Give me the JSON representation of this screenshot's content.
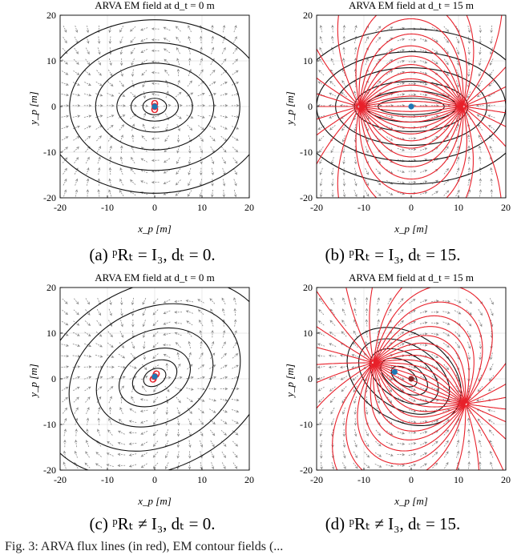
{
  "chart_data": [
    {
      "type": "scatter",
      "title": "ARVA EM field at d_t = 0 m",
      "xlabel": "x_p [m]",
      "ylabel": "y_p [m]",
      "xlim": [
        -20,
        20
      ],
      "ylim": [
        -20,
        20
      ],
      "xticks": [
        "-20",
        "-10",
        "0",
        "10",
        "20"
      ],
      "yticks": [
        "20",
        "10",
        "0",
        "-10",
        "-20"
      ],
      "grid": true,
      "points": [
        {
          "x": 0,
          "y": 0,
          "color": "#1f77b4"
        }
      ],
      "caption": "(a) ᵖRₜ = I₃, dₜ = 0."
    },
    {
      "type": "scatter",
      "title": "ARVA EM field at d_t = 15 m",
      "xlabel": "x_p [m]",
      "ylabel": "y_p [m]",
      "xlim": [
        -20,
        20
      ],
      "ylim": [
        -20,
        20
      ],
      "xticks": [
        "-20",
        "-10",
        "0",
        "10",
        "20"
      ],
      "yticks": [
        "20",
        "10",
        "0",
        "-10",
        "-20"
      ],
      "grid": true,
      "points": [
        {
          "x": 0,
          "y": 0,
          "color": "#1f77b4"
        }
      ],
      "caption": "(b) ᵖRₜ = I₃, dₜ = 15."
    },
    {
      "type": "scatter",
      "title": "ARVA EM field at d_t = 0 m",
      "xlabel": "x_p [m]",
      "ylabel": "y_p [m]",
      "xlim": [
        -20,
        20
      ],
      "ylim": [
        -20,
        20
      ],
      "xticks": [
        "-20",
        "-10",
        "0",
        "10",
        "20"
      ],
      "yticks": [
        "20",
        "10",
        "0",
        "-10",
        "-20"
      ],
      "grid": true,
      "points": [
        {
          "x": 0,
          "y": 0.5,
          "color": "#1f77b4"
        }
      ],
      "caption": "(c) ᵖRₜ ≠ I₃, dₜ = 0."
    },
    {
      "type": "scatter",
      "title": "ARVA EM field at d_t = 15 m",
      "xlabel": "x_p [m]",
      "ylabel": "y_p [m]",
      "xlim": [
        -20,
        20
      ],
      "ylim": [
        -20,
        20
      ],
      "xticks": [
        "-20",
        "-10",
        "0",
        "10",
        "20"
      ],
      "yticks": [
        "20",
        "10",
        "0",
        "-10",
        "-20"
      ],
      "grid": true,
      "points": [
        {
          "x": -3.5,
          "y": 1.5,
          "color": "#1f77b4"
        },
        {
          "x": 0,
          "y": 0,
          "color": "#8b2a2a"
        }
      ],
      "caption": "(d) ᵖRₜ ≠ I₃, dₜ = 15."
    }
  ],
  "footer_text": "Fig. 3: ARVA flux lines (in red), EM contour fields (..."
}
